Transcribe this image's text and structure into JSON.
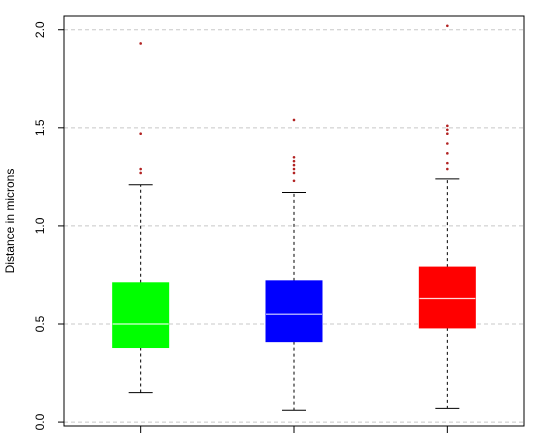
{
  "chart_data": {
    "type": "box",
    "title": "",
    "xlabel": "",
    "ylabel": "Distance in microns",
    "ylim": [
      -0.02,
      2.07
    ],
    "yticks": [
      0.0,
      0.5,
      1.0,
      1.5,
      2.0
    ],
    "ytick_labels": [
      "0.0",
      "0.5",
      "1.0",
      "1.5",
      "2.0"
    ],
    "grid": "horizontal-dashed",
    "legend": "none",
    "boxes": [
      {
        "color": "#00ff00",
        "whisker_low": 0.15,
        "q1": 0.38,
        "median": 0.5,
        "q3": 0.71,
        "whisker_high": 1.21,
        "outliers": [
          1.27,
          1.29,
          1.47,
          1.93
        ]
      },
      {
        "color": "#0000ff",
        "whisker_low": 0.06,
        "q1": 0.41,
        "median": 0.55,
        "q3": 0.72,
        "whisker_high": 1.17,
        "outliers": [
          1.23,
          1.27,
          1.29,
          1.31,
          1.33,
          1.35,
          1.54
        ]
      },
      {
        "color": "#ff0000",
        "whisker_low": 0.07,
        "q1": 0.48,
        "median": 0.63,
        "q3": 0.79,
        "whisker_high": 1.24,
        "outliers": [
          1.29,
          1.32,
          1.37,
          1.42,
          1.47,
          1.49,
          1.51,
          2.02
        ]
      }
    ]
  }
}
